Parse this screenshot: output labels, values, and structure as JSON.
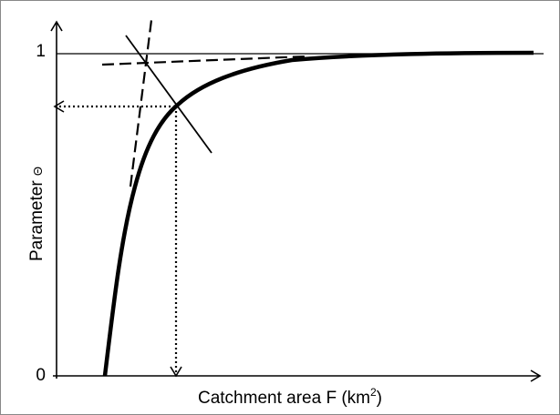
{
  "y_axis": {
    "title": "Parameter",
    "symbol": "Θ",
    "top_label": "1",
    "bottom_label": "0"
  },
  "x_axis": {
    "title": "Catchment area F (km",
    "superscript": "2",
    "closing": ")"
  }
}
